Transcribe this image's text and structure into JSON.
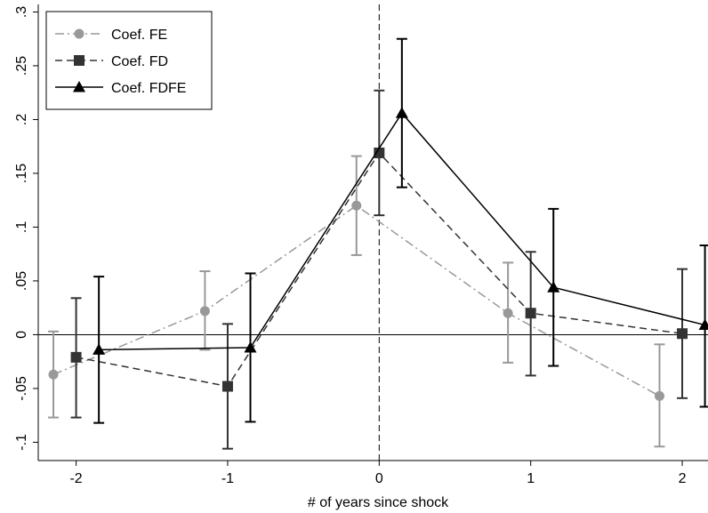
{
  "chart_data": {
    "type": "line",
    "title": "",
    "xlabel": "# of years since shock",
    "ylabel": "",
    "xlim": [
      -2.25,
      2.17
    ],
    "ylim": [
      -0.117,
      0.307
    ],
    "x_ticks": [
      -2,
      -1,
      0,
      1,
      2
    ],
    "x_tick_labels": [
      "-2",
      "-1",
      "0",
      "1",
      "2"
    ],
    "y_ticks": [
      -0.1,
      -0.05,
      0,
      0.05,
      0.1,
      0.15,
      0.2,
      0.25,
      0.3
    ],
    "y_tick_labels": [
      "-.1",
      "-.05",
      "0",
      ".05",
      ".1",
      ".15",
      ".2",
      ".25",
      ".3"
    ],
    "grid": false,
    "reference_lines": {
      "horizontal_at": 0,
      "vertical_dashed_at": 0
    },
    "legend_placement": "top-left",
    "series": [
      {
        "name": "Coef. FE",
        "color": "#999999",
        "marker": "circle",
        "line_style": "dash-dot",
        "x": [
          -2.15,
          -1.15,
          -0.15,
          0.85,
          1.85
        ],
        "y": [
          -0.037,
          0.022,
          0.12,
          0.02,
          -0.057
        ],
        "ci_low": [
          -0.077,
          -0.014,
          0.074,
          -0.026,
          -0.104
        ],
        "ci_high": [
          0.003,
          0.059,
          0.166,
          0.067,
          -0.009
        ]
      },
      {
        "name": "Coef. FD",
        "color": "#333333",
        "marker": "square",
        "line_style": "dash",
        "x": [
          -2.0,
          -1.0,
          0.0,
          1.0,
          2.0
        ],
        "y": [
          -0.021,
          -0.048,
          0.169,
          0.02,
          0.001
        ],
        "ci_low": [
          -0.077,
          -0.106,
          0.111,
          -0.038,
          -0.059
        ],
        "ci_high": [
          0.034,
          0.01,
          0.227,
          0.077,
          0.061
        ]
      },
      {
        "name": "Coef. FDFE",
        "color": "#000000",
        "marker": "triangle",
        "line_style": "solid",
        "x": [
          -1.85,
          -0.85,
          0.15,
          1.15,
          2.15
        ],
        "y": [
          -0.014,
          -0.012,
          0.206,
          0.044,
          0.009
        ],
        "ci_low": [
          -0.082,
          -0.081,
          0.137,
          -0.029,
          -0.067
        ],
        "ci_high": [
          0.054,
          0.057,
          0.275,
          0.117,
          0.083
        ]
      }
    ]
  }
}
